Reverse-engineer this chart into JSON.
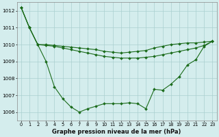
{
  "x": [
    0,
    1,
    2,
    3,
    4,
    5,
    6,
    7,
    8,
    9,
    10,
    11,
    12,
    13,
    14,
    15,
    16,
    17,
    18,
    19,
    20,
    21,
    22,
    23
  ],
  "line1": [
    1012.2,
    1011.0,
    1010.0,
    1009.95,
    1009.9,
    1009.8,
    1009.7,
    1009.6,
    1009.5,
    1009.4,
    1009.3,
    1009.25,
    1009.2,
    1009.2,
    1009.2,
    1009.25,
    1009.3,
    1009.4,
    1009.5,
    1009.6,
    1009.7,
    1009.8,
    1009.95,
    1010.2
  ],
  "line2": [
    1012.2,
    1011.0,
    1010.0,
    1010.0,
    1009.95,
    1009.9,
    1009.85,
    1009.8,
    1009.75,
    1009.7,
    1009.6,
    1009.55,
    1009.5,
    1009.55,
    1009.6,
    1009.65,
    1009.8,
    1009.9,
    1010.0,
    1010.05,
    1010.1,
    1010.1,
    1010.15,
    1010.2
  ],
  "line3": [
    1012.2,
    1011.0,
    1010.0,
    1009.0,
    1007.5,
    1006.8,
    1006.3,
    1006.0,
    1006.2,
    1006.35,
    1006.5,
    1006.5,
    1006.5,
    1006.55,
    1006.5,
    1006.2,
    1007.35,
    1007.3,
    1007.65,
    1008.1,
    1008.8,
    1009.1,
    1009.9,
    1010.2
  ],
  "ylim": [
    1005.5,
    1012.5
  ],
  "yticks": [
    1006,
    1007,
    1008,
    1009,
    1010,
    1011,
    1012
  ],
  "xlabel": "Graphe pression niveau de la mer (hPa)",
  "bg_color": "#d4eded",
  "line_color": "#1a6b1a",
  "grid_color": "#aacfcf"
}
